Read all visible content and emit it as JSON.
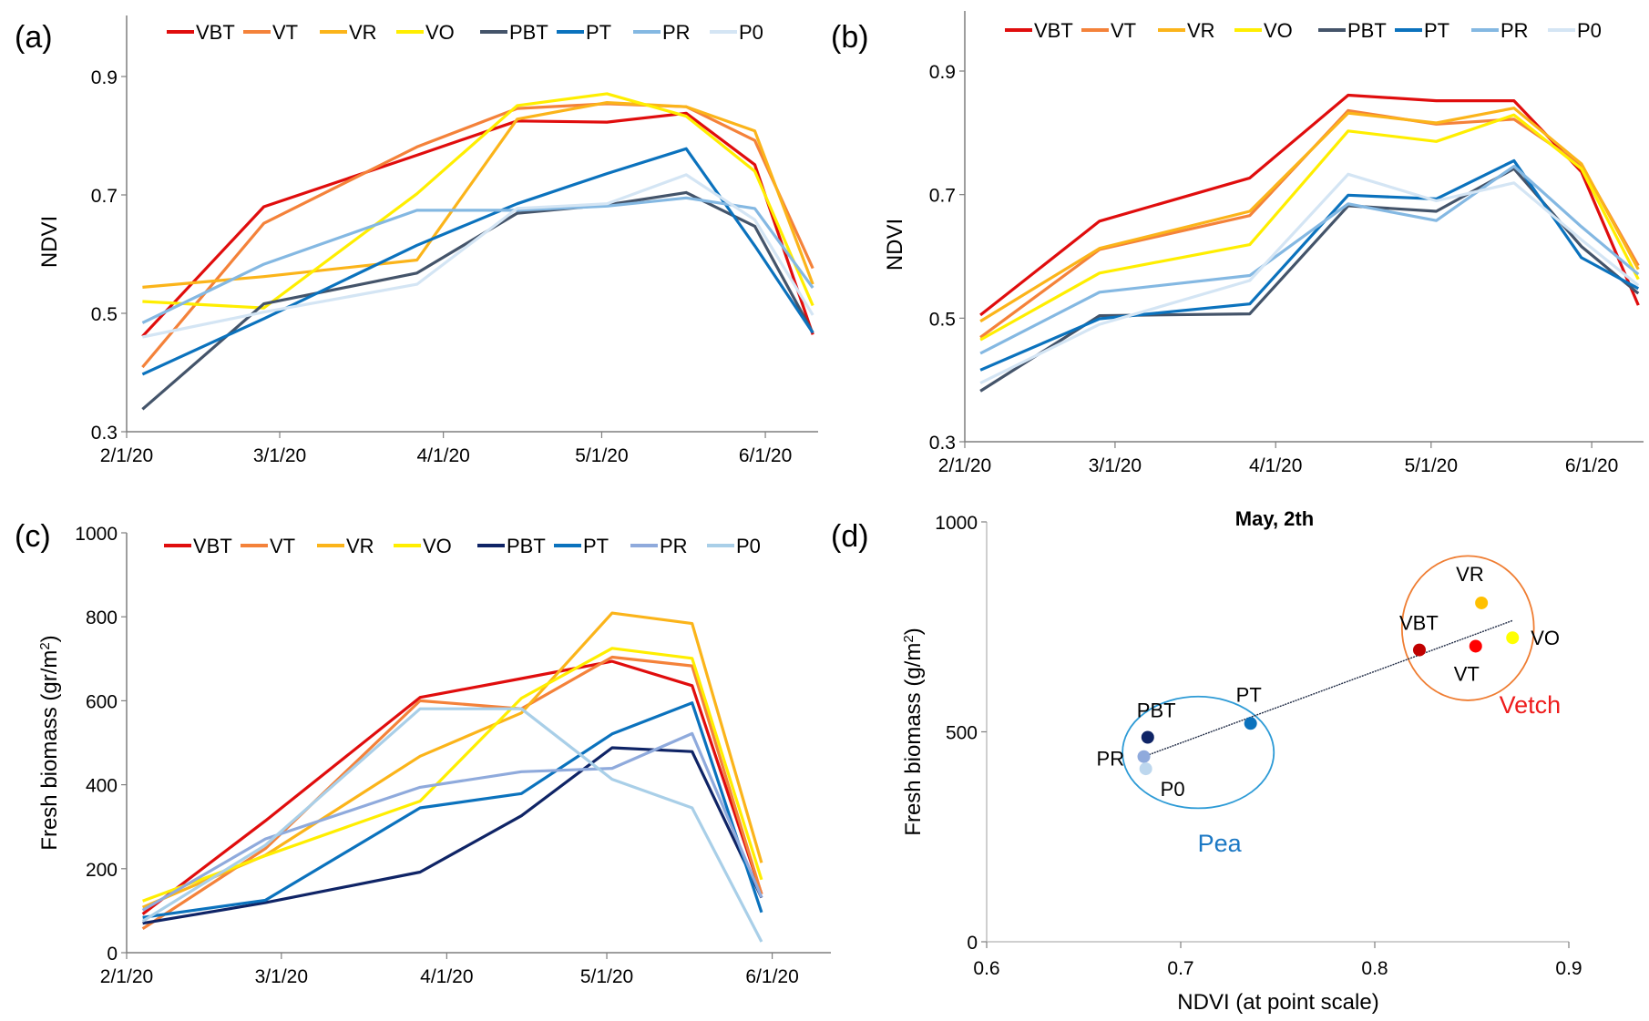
{
  "chart_data": [
    {
      "panel": "(a)",
      "type": "line",
      "ylabel": "NDVI",
      "xlabel": "",
      "ylim": [
        0.3,
        1.0
      ],
      "yticks": [
        0.3,
        0.5,
        0.7,
        0.9
      ],
      "ytick_labels": [
        "0.3",
        "0.5",
        "0.7",
        "0.9"
      ],
      "xlim": [
        "2020-02-01",
        "2020-06-11"
      ],
      "xticks": [
        "2020-02-01",
        "2020-03-01",
        "2020-04-01",
        "2020-05-01",
        "2020-06-01"
      ],
      "xtick_labels": [
        "2/1/20",
        "3/1/20",
        "4/1/20",
        "5/1/20",
        "6/1/20"
      ],
      "legend": "top",
      "grid": false,
      "x": [
        "2020-02-04",
        "2020-02-27",
        "2020-03-27",
        "2020-04-15",
        "2020-05-02",
        "2020-05-17",
        "2020-05-30",
        "2020-06-10"
      ],
      "series": [
        {
          "name": "VBT",
          "color": "#e00d0d",
          "values": [
            0.461,
            0.68,
            0.767,
            0.825,
            0.823,
            0.838,
            0.751,
            0.464
          ]
        },
        {
          "name": "VT",
          "color": "#f4823a",
          "values": [
            0.409,
            0.652,
            0.781,
            0.846,
            0.854,
            0.849,
            0.792,
            0.576
          ]
        },
        {
          "name": "VR",
          "color": "#fbb41a",
          "values": [
            0.544,
            0.562,
            0.59,
            0.828,
            0.856,
            0.849,
            0.808,
            0.549
          ]
        },
        {
          "name": "VO",
          "color": "#ffee00",
          "values": [
            0.52,
            0.509,
            0.702,
            0.851,
            0.871,
            0.833,
            0.74,
            0.513
          ]
        },
        {
          "name": "PBT",
          "color": "#44546a",
          "values": [
            0.338,
            0.516,
            0.568,
            0.669,
            0.683,
            0.704,
            0.647,
            0.467
          ]
        },
        {
          "name": "PT",
          "color": "#0b72bd",
          "values": [
            0.397,
            0.491,
            0.615,
            0.685,
            0.736,
            0.778,
            0.614,
            0.467
          ]
        },
        {
          "name": "PR",
          "color": "#84b8e2",
          "values": [
            0.484,
            0.583,
            0.674,
            0.674,
            0.681,
            0.695,
            0.677,
            0.543
          ]
        },
        {
          "name": "P0",
          "color": "#d4e5f4",
          "values": [
            0.46,
            0.502,
            0.549,
            0.677,
            0.685,
            0.734,
            0.658,
            0.497
          ]
        }
      ]
    },
    {
      "panel": "(b)",
      "type": "line",
      "ylabel": "NDVI",
      "xlabel": "",
      "ylim": [
        0.3,
        1.0
      ],
      "yticks": [
        0.3,
        0.5,
        0.7,
        0.9
      ],
      "ytick_labels": [
        "0.3",
        "0.5",
        "0.7",
        "0.9"
      ],
      "xlim": [
        "2020-02-01",
        "2020-06-11"
      ],
      "xticks": [
        "2020-02-01",
        "2020-03-01",
        "2020-04-01",
        "2020-05-01",
        "2020-06-01"
      ],
      "xtick_labels": [
        "2/1/20",
        "3/1/20",
        "4/1/20",
        "5/1/20",
        "6/1/20"
      ],
      "legend": "top",
      "grid": false,
      "x": [
        "2020-02-04",
        "2020-02-27",
        "2020-03-27",
        "2020-04-15",
        "2020-05-02",
        "2020-05-17",
        "2020-05-30",
        "2020-06-10"
      ],
      "series": [
        {
          "name": "VBT",
          "color": "#e00d0d",
          "values": [
            0.505,
            0.657,
            0.727,
            0.861,
            0.852,
            0.852,
            0.737,
            0.521
          ]
        },
        {
          "name": "VT",
          "color": "#f4823a",
          "values": [
            0.469,
            0.611,
            0.666,
            0.836,
            0.814,
            0.822,
            0.748,
            0.585
          ]
        },
        {
          "name": "VR",
          "color": "#fbb41a",
          "values": [
            0.495,
            0.613,
            0.673,
            0.832,
            0.816,
            0.84,
            0.75,
            0.579
          ]
        },
        {
          "name": "VO",
          "color": "#ffee00",
          "values": [
            0.465,
            0.573,
            0.619,
            0.803,
            0.786,
            0.829,
            0.742,
            0.563
          ]
        },
        {
          "name": "PBT",
          "color": "#44546a",
          "values": [
            0.382,
            0.504,
            0.507,
            0.682,
            0.673,
            0.742,
            0.616,
            0.54
          ]
        },
        {
          "name": "PT",
          "color": "#0b72bd",
          "values": [
            0.416,
            0.499,
            0.523,
            0.699,
            0.693,
            0.755,
            0.598,
            0.548
          ]
        },
        {
          "name": "PR",
          "color": "#84b8e2",
          "values": [
            0.443,
            0.542,
            0.569,
            0.685,
            0.658,
            0.746,
            0.648,
            0.571
          ]
        },
        {
          "name": "P0",
          "color": "#d4e5f4",
          "values": [
            0.395,
            0.49,
            0.561,
            0.733,
            0.69,
            0.719,
            0.627,
            0.553
          ]
        }
      ]
    },
    {
      "panel": "(c)",
      "type": "line",
      "ylabel": "Fresh biomass (gr/m",
      "ylabel_sup": "2",
      "ylabel_end": ")",
      "xlabel": "",
      "ylim": [
        0,
        1000
      ],
      "yticks": [
        0,
        200,
        400,
        600,
        800,
        1000
      ],
      "ytick_labels": [
        "0",
        "200",
        "400",
        "600",
        "800",
        "1000"
      ],
      "xlim": [
        "2020-02-01",
        "2020-06-12"
      ],
      "xticks": [
        "2020-02-01",
        "2020-03-01",
        "2020-04-01",
        "2020-05-01",
        "2020-06-01"
      ],
      "xtick_labels": [
        "2/1/20",
        "3/1/20",
        "4/1/20",
        "5/1/20",
        "6/1/20"
      ],
      "legend": "top",
      "grid": false,
      "x": [
        "2020-02-04",
        "2020-02-27",
        "2020-03-27",
        "2020-04-15",
        "2020-05-02",
        "2020-05-17",
        "2020-05-30"
      ],
      "series": [
        {
          "name": "VBT",
          "color": "#e00d0d",
          "values": [
            92,
            314,
            608,
            653,
            694,
            636,
            140
          ]
        },
        {
          "name": "VT",
          "color": "#f4823a",
          "values": [
            57,
            248,
            600,
            581,
            704,
            683,
            139
          ]
        },
        {
          "name": "VR",
          "color": "#fbb41a",
          "values": [
            108,
            232,
            468,
            571,
            809,
            784,
            214
          ]
        },
        {
          "name": "VO",
          "color": "#ffee00",
          "values": [
            123,
            231,
            361,
            606,
            725,
            701,
            174
          ]
        },
        {
          "name": "PBT",
          "color": "#0f2466",
          "values": [
            70,
            119,
            192,
            326,
            488,
            479,
            131
          ]
        },
        {
          "name": "PT",
          "color": "#0b72bd",
          "values": [
            84,
            125,
            345,
            379,
            521,
            595,
            96
          ]
        },
        {
          "name": "PR",
          "color": "#8faadc",
          "values": [
            101,
            271,
            394,
            431,
            439,
            522,
            132
          ]
        },
        {
          "name": "P0",
          "color": "#a9cfe8",
          "values": [
            75,
            256,
            581,
            581,
            413,
            345,
            26
          ]
        }
      ]
    },
    {
      "panel": "(d)",
      "type": "scatter",
      "title": "May, 2th",
      "xlabel": "NDVI (at point scale)",
      "ylabel": "Fresh biomass (g/m",
      "ylabel_sup": "2",
      "ylabel_end": ")",
      "xlim": [
        0.6,
        0.9
      ],
      "ylim": [
        0,
        1000
      ],
      "xticks": [
        0.6,
        0.7,
        0.8,
        0.9
      ],
      "xtick_labels": [
        "0.6",
        "0.7",
        "0.8",
        "0.9"
      ],
      "yticks": [
        0,
        500,
        1000
      ],
      "ytick_labels": [
        "0",
        "500",
        "1000"
      ],
      "grid": false,
      "points": [
        {
          "name": "PBT",
          "x": 0.683,
          "y": 487,
          "color": "#0f2466"
        },
        {
          "name": "PR",
          "x": 0.681,
          "y": 441,
          "color": "#8faadc"
        },
        {
          "name": "P0",
          "x": 0.682,
          "y": 412,
          "color": "#bdd7ee"
        },
        {
          "name": "PT",
          "x": 0.736,
          "y": 520,
          "color": "#0b72bd"
        },
        {
          "name": "VBT",
          "x": 0.823,
          "y": 695,
          "color": "#c00000"
        },
        {
          "name": "VT",
          "x": 0.852,
          "y": 704,
          "color": "#ff0000"
        },
        {
          "name": "VR",
          "x": 0.855,
          "y": 807,
          "color": "#ffc000"
        },
        {
          "name": "VO",
          "x": 0.871,
          "y": 724,
          "color": "#ffff00"
        }
      ],
      "trendline": {
        "x": [
          0.681,
          0.871
        ],
        "y": [
          441,
          765
        ],
        "style": "dotted"
      },
      "groups": [
        {
          "label": "Pea",
          "color": "#2e9bd6",
          "label_color": "#1b78c4"
        },
        {
          "label": "Vetch",
          "color": "#ef7d32",
          "label_color": "#ee1c1c"
        }
      ]
    }
  ]
}
